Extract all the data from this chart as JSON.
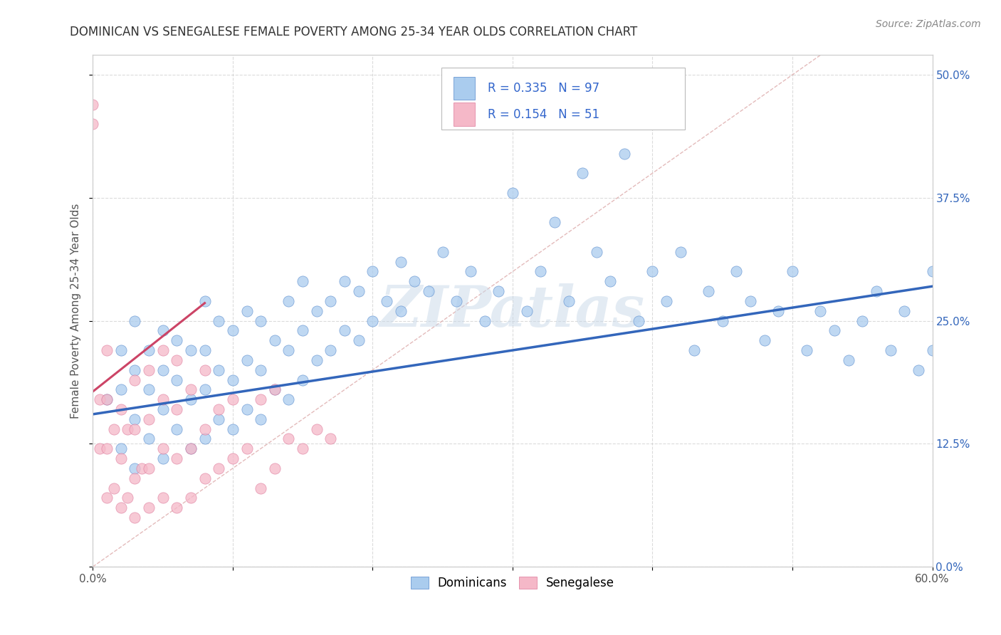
{
  "title": "DOMINICAN VS SENEGALESE FEMALE POVERTY AMONG 25-34 YEAR OLDS CORRELATION CHART",
  "source": "Source: ZipAtlas.com",
  "ylabel": "Female Poverty Among 25-34 Year Olds",
  "xlim": [
    0.0,
    0.6
  ],
  "ylim": [
    0.0,
    0.52
  ],
  "xticks": [
    0.0,
    0.1,
    0.2,
    0.3,
    0.4,
    0.5,
    0.6
  ],
  "xticklabels": [
    "0.0%",
    "",
    "",
    "",
    "",
    "",
    "60.0%"
  ],
  "yticks_right": [
    0.0,
    0.125,
    0.25,
    0.375,
    0.5
  ],
  "yticklabels_right": [
    "0.0%",
    "12.5%",
    "25.0%",
    "37.5%",
    "50.0%"
  ],
  "blue_color": "#aaccee",
  "blue_edge": "#5588cc",
  "pink_color": "#f5b8c8",
  "pink_edge": "#dd7799",
  "legend_blue_R": "R = 0.335",
  "legend_blue_N": "N = 97",
  "legend_pink_R": "R = 0.154",
  "legend_pink_N": "N = 51",
  "legend_label_dominicans": "Dominicans",
  "legend_label_senegalese": "Senegalese",
  "watermark": "ZIPatlas",
  "background_color": "#ffffff",
  "plot_bg_color": "#ffffff",
  "grid_color": "#cccccc",
  "title_color": "#333333",
  "axis_label_color": "#555555",
  "legend_R_color": "#3366cc",
  "diag_line_color": "#cccccc",
  "blue_trend_color": "#3366bb",
  "pink_trend_color": "#cc4466",
  "blue_dots_x": [
    0.01,
    0.02,
    0.02,
    0.02,
    0.03,
    0.03,
    0.03,
    0.03,
    0.04,
    0.04,
    0.04,
    0.05,
    0.05,
    0.05,
    0.05,
    0.06,
    0.06,
    0.06,
    0.07,
    0.07,
    0.07,
    0.08,
    0.08,
    0.08,
    0.08,
    0.09,
    0.09,
    0.09,
    0.1,
    0.1,
    0.1,
    0.11,
    0.11,
    0.11,
    0.12,
    0.12,
    0.12,
    0.13,
    0.13,
    0.14,
    0.14,
    0.14,
    0.15,
    0.15,
    0.15,
    0.16,
    0.16,
    0.17,
    0.17,
    0.18,
    0.18,
    0.19,
    0.19,
    0.2,
    0.2,
    0.21,
    0.22,
    0.22,
    0.23,
    0.24,
    0.25,
    0.26,
    0.27,
    0.28,
    0.29,
    0.3,
    0.31,
    0.32,
    0.33,
    0.34,
    0.35,
    0.36,
    0.37,
    0.38,
    0.39,
    0.4,
    0.41,
    0.42,
    0.43,
    0.44,
    0.45,
    0.46,
    0.47,
    0.48,
    0.49,
    0.5,
    0.51,
    0.52,
    0.53,
    0.54,
    0.55,
    0.56,
    0.57,
    0.58,
    0.59,
    0.6,
    0.6
  ],
  "blue_dots_y": [
    0.17,
    0.12,
    0.18,
    0.22,
    0.1,
    0.15,
    0.2,
    0.25,
    0.13,
    0.18,
    0.22,
    0.11,
    0.16,
    0.2,
    0.24,
    0.14,
    0.19,
    0.23,
    0.12,
    0.17,
    0.22,
    0.13,
    0.18,
    0.22,
    0.27,
    0.15,
    0.2,
    0.25,
    0.14,
    0.19,
    0.24,
    0.16,
    0.21,
    0.26,
    0.15,
    0.2,
    0.25,
    0.18,
    0.23,
    0.17,
    0.22,
    0.27,
    0.19,
    0.24,
    0.29,
    0.21,
    0.26,
    0.22,
    0.27,
    0.24,
    0.29,
    0.23,
    0.28,
    0.25,
    0.3,
    0.27,
    0.26,
    0.31,
    0.29,
    0.28,
    0.32,
    0.27,
    0.3,
    0.25,
    0.28,
    0.38,
    0.26,
    0.3,
    0.35,
    0.27,
    0.4,
    0.32,
    0.29,
    0.42,
    0.25,
    0.3,
    0.27,
    0.32,
    0.22,
    0.28,
    0.25,
    0.3,
    0.27,
    0.23,
    0.26,
    0.3,
    0.22,
    0.26,
    0.24,
    0.21,
    0.25,
    0.28,
    0.22,
    0.26,
    0.2,
    0.3,
    0.22
  ],
  "pink_dots_x": [
    0.0,
    0.0,
    0.005,
    0.005,
    0.01,
    0.01,
    0.01,
    0.01,
    0.015,
    0.015,
    0.02,
    0.02,
    0.02,
    0.025,
    0.025,
    0.03,
    0.03,
    0.03,
    0.03,
    0.035,
    0.04,
    0.04,
    0.04,
    0.04,
    0.05,
    0.05,
    0.05,
    0.05,
    0.06,
    0.06,
    0.06,
    0.06,
    0.07,
    0.07,
    0.07,
    0.08,
    0.08,
    0.08,
    0.09,
    0.09,
    0.1,
    0.1,
    0.11,
    0.12,
    0.12,
    0.13,
    0.13,
    0.14,
    0.15,
    0.16,
    0.17
  ],
  "pink_dots_y": [
    0.45,
    0.47,
    0.12,
    0.17,
    0.07,
    0.12,
    0.17,
    0.22,
    0.08,
    0.14,
    0.06,
    0.11,
    0.16,
    0.07,
    0.14,
    0.05,
    0.09,
    0.14,
    0.19,
    0.1,
    0.06,
    0.1,
    0.15,
    0.2,
    0.07,
    0.12,
    0.17,
    0.22,
    0.06,
    0.11,
    0.16,
    0.21,
    0.07,
    0.12,
    0.18,
    0.09,
    0.14,
    0.2,
    0.1,
    0.16,
    0.11,
    0.17,
    0.12,
    0.08,
    0.17,
    0.1,
    0.18,
    0.13,
    0.12,
    0.14,
    0.13
  ]
}
